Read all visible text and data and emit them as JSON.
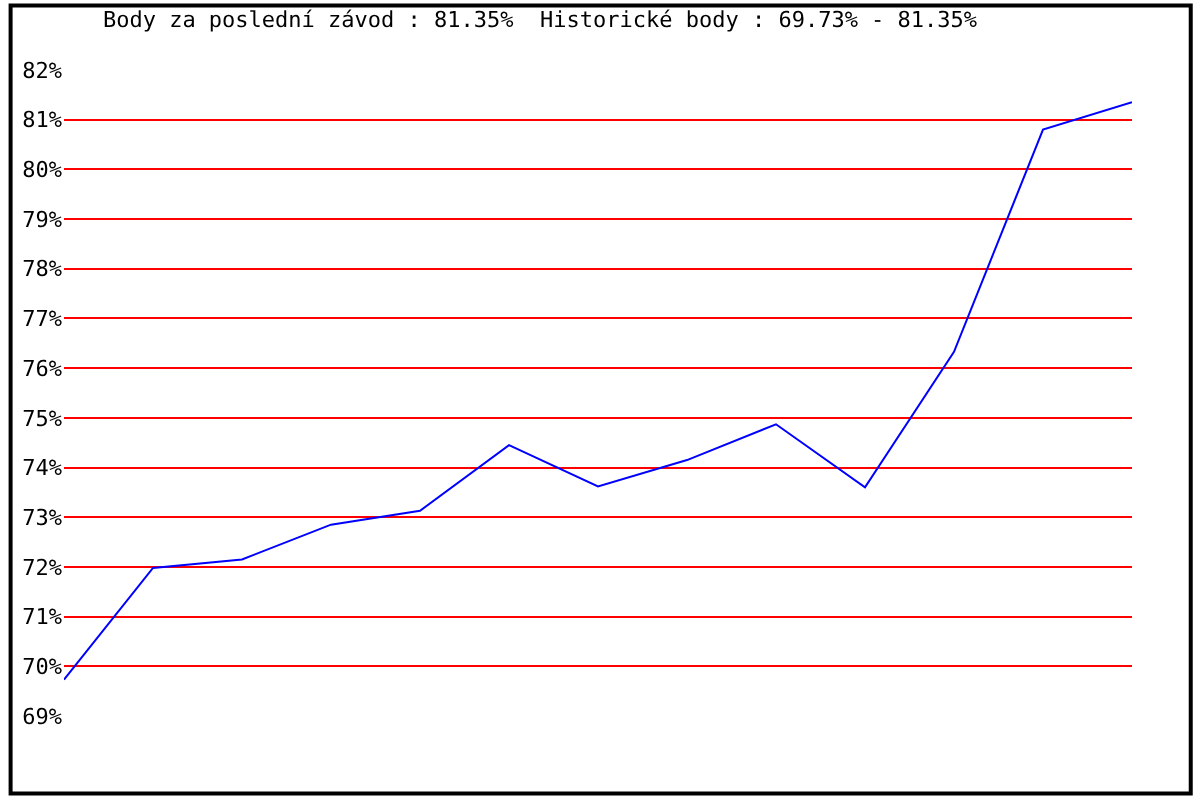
{
  "chart_data": {
    "type": "line",
    "title": "Body za poslední závod : 81.35%  Historické body : 69.73% - 81.35%",
    "categories": [
      null,
      null,
      null,
      null,
      null,
      null,
      null,
      null,
      null,
      null,
      null,
      null,
      null
    ],
    "series": [
      {
        "color": "#0000ff",
        "values": [
          69.73,
          71.98,
          72.15,
          72.85,
          73.13,
          74.45,
          73.62,
          74.15,
          74.87,
          73.6,
          76.33,
          80.8,
          81.35
        ]
      }
    ],
    "ylim": [
      69,
      82
    ],
    "yticks": [
      {
        "value": 69,
        "label": "69%"
      },
      {
        "value": 70,
        "label": "70%"
      },
      {
        "value": 71,
        "label": "71%"
      },
      {
        "value": 72,
        "label": "72%"
      },
      {
        "value": 73,
        "label": "73%"
      },
      {
        "value": 74,
        "label": "74%"
      },
      {
        "value": 75,
        "label": "75%"
      },
      {
        "value": 76,
        "label": "76%"
      },
      {
        "value": 77,
        "label": "77%"
      },
      {
        "value": 78,
        "label": "78%"
      },
      {
        "value": 79,
        "label": "79%"
      },
      {
        "value": 80,
        "label": "80%"
      },
      {
        "value": 81,
        "label": "81%"
      },
      {
        "value": 82,
        "label": "82%"
      }
    ],
    "grid": "y",
    "marker": "none",
    "line_style": "solid",
    "tick_labels": "y",
    "legend": false
  }
}
